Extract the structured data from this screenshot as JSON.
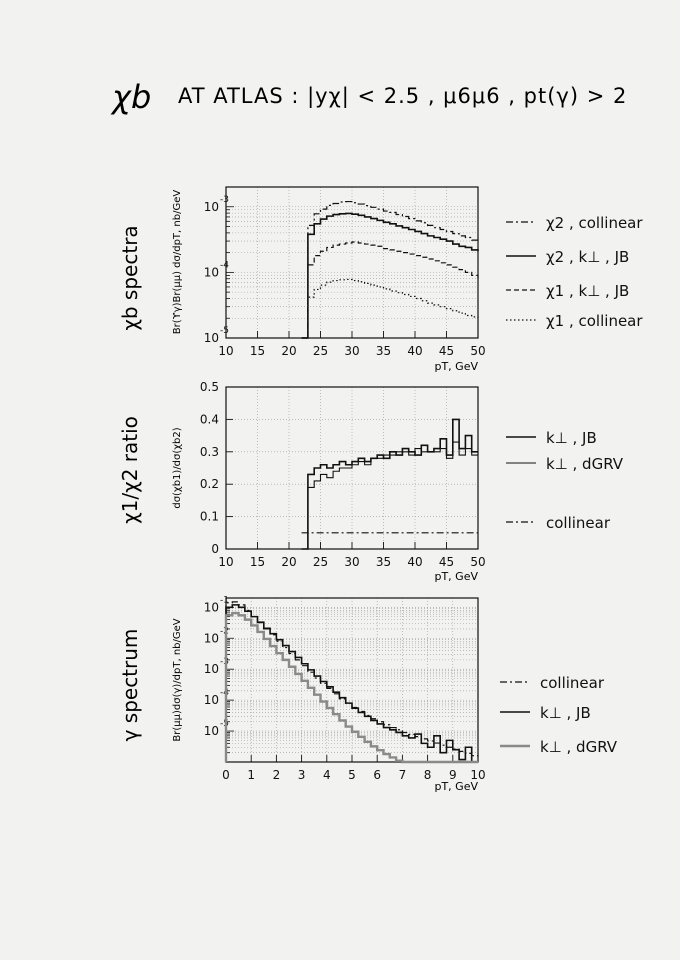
{
  "page_title": {
    "prefix": "χb",
    "rest": "AT ATLAS : |yχ| < 2.5 , μ6μ6 , pt(γ) > 2"
  },
  "colors": {
    "ink": "#111111",
    "grid": "#9a9a9a",
    "paper": "#f2f2f0"
  },
  "chart_data": [
    {
      "type": "line",
      "side_label": "χb spectra",
      "ylabel": "Br(ϒγ)Br(μμ) dσ/dpT, nb/GeV",
      "xlabel": "pT, GeV",
      "xlim": [
        10,
        50
      ],
      "ylim": [
        1e-05,
        0.002
      ],
      "yscale": "log",
      "grid": true,
      "xticks": [
        10,
        15,
        20,
        25,
        30,
        35,
        40,
        45,
        50
      ],
      "yticks": [
        {
          "v": 1e-05,
          "label": "10",
          "exp": "-5"
        },
        {
          "v": 0.0001,
          "label": "10",
          "exp": "-4"
        },
        {
          "v": 0.001,
          "label": "10",
          "exp": "-3"
        }
      ],
      "legend_position": "right",
      "series": [
        {
          "name": "χ2 , collinear",
          "style": "dashdot",
          "x": [
            22,
            23,
            24,
            25,
            26,
            27,
            28,
            29,
            30,
            31,
            32,
            33,
            34,
            35,
            36,
            37,
            38,
            39,
            40,
            41,
            42,
            43,
            44,
            45,
            46,
            47,
            48,
            49,
            50
          ],
          "values": [
            1e-05,
            0.00052,
            0.00078,
            0.00092,
            0.00105,
            0.00112,
            0.00118,
            0.0012,
            0.00115,
            0.0011,
            0.00104,
            0.00098,
            0.00092,
            0.00086,
            0.00082,
            0.00076,
            0.00071,
            0.00066,
            0.00061,
            0.00057,
            0.00052,
            0.00048,
            0.00045,
            0.00042,
            0.00039,
            0.00036,
            0.00034,
            0.00031,
            0.00029
          ]
        },
        {
          "name": "χ2 , k⊥ , JB",
          "style": "solid",
          "x": [
            22,
            23,
            24,
            25,
            26,
            27,
            28,
            29,
            30,
            31,
            32,
            33,
            34,
            35,
            36,
            37,
            38,
            39,
            40,
            41,
            42,
            43,
            44,
            45,
            46,
            47,
            48,
            49,
            50
          ],
          "values": [
            1e-05,
            0.00038,
            0.00055,
            0.00065,
            0.00072,
            0.00076,
            0.00078,
            0.00079,
            0.00077,
            0.00074,
            0.0007,
            0.00066,
            0.00062,
            0.00058,
            0.00055,
            0.00051,
            0.00048,
            0.00045,
            0.00042,
            0.00039,
            0.00036,
            0.00034,
            0.00032,
            0.0003,
            0.00027,
            0.00025,
            0.00024,
            0.00022,
            0.00021
          ]
        },
        {
          "name": "χ1 , k⊥ , JB",
          "style": "dashed",
          "x": [
            22,
            23,
            24,
            25,
            26,
            27,
            28,
            29,
            30,
            31,
            32,
            33,
            34,
            35,
            36,
            37,
            38,
            39,
            40,
            41,
            42,
            43,
            44,
            45,
            46,
            47,
            48,
            49,
            50
          ],
          "values": [
            1e-05,
            0.00013,
            0.00018,
            0.00021,
            0.00024,
            0.00026,
            0.00027,
            0.00028,
            0.00029,
            0.00028,
            0.00027,
            0.00026,
            0.00025,
            0.00023,
            0.00022,
            0.00021,
            0.0002,
            0.00019,
            0.00018,
            0.00017,
            0.00016,
            0.00015,
            0.00014,
            0.00013,
            0.00012,
            0.00011,
            0.0001,
            9e-05,
            8e-05
          ]
        },
        {
          "name": "χ1 , collinear",
          "style": "dotted",
          "x": [
            22,
            23,
            24,
            25,
            26,
            27,
            28,
            29,
            30,
            31,
            32,
            33,
            34,
            35,
            36,
            37,
            38,
            39,
            40,
            41,
            42,
            43,
            44,
            45,
            46,
            47,
            48,
            49,
            50
          ],
          "values": [
            1e-05,
            4.2e-05,
            5.5e-05,
            6.4e-05,
            7.1e-05,
            7.5e-05,
            7.7e-05,
            7.8e-05,
            7.5e-05,
            7.2e-05,
            6.8e-05,
            6.4e-05,
            6e-05,
            5.6e-05,
            5.2e-05,
            4.9e-05,
            4.6e-05,
            4.3e-05,
            4e-05,
            3.7e-05,
            3.4e-05,
            3.2e-05,
            3e-05,
            2.8e-05,
            2.6e-05,
            2.4e-05,
            2.2e-05,
            2.1e-05,
            2e-05
          ]
        }
      ]
    },
    {
      "type": "line",
      "side_label": "χ1/χ2 ratio",
      "ylabel": "dσ(χb1)/dσ(χb2)",
      "xlabel": "pT, GeV",
      "xlim": [
        10,
        50
      ],
      "ylim": [
        0,
        0.5
      ],
      "yscale": "linear",
      "grid": true,
      "xticks": [
        10,
        15,
        20,
        25,
        30,
        35,
        40,
        45,
        50
      ],
      "yticks": [
        {
          "v": 0,
          "label": "0"
        },
        {
          "v": 0.1,
          "label": "0.1"
        },
        {
          "v": 0.2,
          "label": "0.2"
        },
        {
          "v": 0.3,
          "label": "0.3"
        },
        {
          "v": 0.4,
          "label": "0.4"
        },
        {
          "v": 0.5,
          "label": "0.5"
        }
      ],
      "legend_position": "right",
      "series": [
        {
          "name": "k⊥ , JB",
          "style": "solid",
          "x": [
            22,
            23,
            24,
            25,
            26,
            27,
            28,
            29,
            30,
            31,
            32,
            33,
            34,
            35,
            36,
            37,
            38,
            39,
            40,
            41,
            42,
            43,
            44,
            45,
            46,
            47,
            48,
            49,
            50
          ],
          "values": [
            0.0,
            0.23,
            0.25,
            0.26,
            0.25,
            0.26,
            0.27,
            0.26,
            0.27,
            0.28,
            0.27,
            0.28,
            0.29,
            0.28,
            0.3,
            0.29,
            0.31,
            0.3,
            0.29,
            0.32,
            0.3,
            0.31,
            0.34,
            0.29,
            0.4,
            0.31,
            0.35,
            0.3,
            0.3
          ]
        },
        {
          "name": "k⊥ , dGRV",
          "style": "solid-thin",
          "x": [
            22,
            23,
            24,
            25,
            26,
            27,
            28,
            29,
            30,
            31,
            32,
            33,
            34,
            35,
            36,
            37,
            38,
            39,
            40,
            41,
            42,
            43,
            44,
            45,
            46,
            47,
            48,
            49,
            50
          ],
          "values": [
            0.0,
            0.19,
            0.21,
            0.23,
            0.22,
            0.24,
            0.25,
            0.25,
            0.26,
            0.27,
            0.26,
            0.28,
            0.28,
            0.29,
            0.29,
            0.3,
            0.3,
            0.29,
            0.31,
            0.3,
            0.3,
            0.3,
            0.31,
            0.28,
            0.33,
            0.29,
            0.31,
            0.29,
            0.29
          ]
        },
        {
          "name": "collinear",
          "style": "dashdot",
          "x": [
            22,
            50
          ],
          "values": [
            0.05,
            0.05
          ]
        }
      ]
    },
    {
      "type": "line",
      "side_label": "γ spectrum",
      "ylabel": "Br(μμ)dσ(γ)/dpT, nb/GeV",
      "xlabel": "pT, GeV",
      "xlim": [
        0,
        10
      ],
      "ylim": [
        1e-06,
        0.2
      ],
      "yscale": "log",
      "grid": true,
      "xticks": [
        0,
        1,
        2,
        3,
        4,
        5,
        6,
        7,
        8,
        9,
        10
      ],
      "yticks": [
        {
          "v": 1e-05,
          "label": "10",
          "exp": "-5"
        },
        {
          "v": 0.0001,
          "label": "10",
          "exp": "-4"
        },
        {
          "v": 0.001,
          "label": "10",
          "exp": "-3"
        },
        {
          "v": 0.01,
          "label": "10",
          "exp": "-2"
        },
        {
          "v": 0.1,
          "label": "10",
          "exp": "-1"
        }
      ],
      "legend_position": "right",
      "series": [
        {
          "name": "collinear",
          "style": "dashdot",
          "x": [
            0,
            0.25,
            0.5,
            0.75,
            1,
            1.25,
            1.5,
            1.75,
            2,
            2.25,
            2.5,
            2.75,
            3,
            3.25,
            3.5,
            3.75,
            4,
            4.25,
            4.5,
            4.75,
            5,
            5.25,
            5.5,
            5.75,
            6,
            6.25,
            6.5,
            6.75,
            7,
            7.25,
            7.5,
            7.75,
            8,
            8.25,
            8.5,
            8.75,
            9,
            9.25,
            9.5,
            9.75,
            10
          ],
          "values": [
            0.14,
            0.15,
            0.12,
            0.08,
            0.05,
            0.032,
            0.02,
            0.013,
            0.008,
            0.005,
            0.0032,
            0.002,
            0.0013,
            0.0008,
            0.00052,
            0.00035,
            0.00024,
            0.00016,
            0.00011,
            8e-05,
            5.8e-05,
            4.3e-05,
            3.2e-05,
            2.5e-05,
            2e-05,
            1.6e-05,
            1.3e-05,
            1.1e-05,
            9e-06,
            7.8e-06,
            6.6e-06,
            5.6e-06,
            4.8e-06,
            4.1e-06,
            3.5e-06,
            3e-06,
            2.6e-06,
            2.2e-06,
            1.9e-06,
            1.6e-06,
            1.4e-06
          ]
        },
        {
          "name": "k⊥ , JB",
          "style": "solid",
          "x": [
            0,
            0.25,
            0.5,
            0.75,
            1,
            1.25,
            1.5,
            1.75,
            2,
            2.25,
            2.5,
            2.75,
            3,
            3.25,
            3.5,
            3.75,
            4,
            4.25,
            4.5,
            4.75,
            5,
            5.25,
            5.5,
            5.75,
            6,
            6.25,
            6.5,
            6.75,
            7,
            7.25,
            7.5,
            7.75,
            8,
            8.25,
            8.5,
            8.75,
            9,
            9.25,
            9.5,
            9.75,
            10
          ],
          "values": [
            0.1,
            0.12,
            0.1,
            0.075,
            0.05,
            0.033,
            0.021,
            0.014,
            0.009,
            0.0058,
            0.0037,
            0.0024,
            0.0015,
            0.00095,
            0.0006,
            0.0004,
            0.00027,
            0.00018,
            0.00012,
            8e-05,
            5.5e-05,
            4e-05,
            3e-05,
            2.2e-05,
            1.7e-05,
            1.3e-05,
            1.1e-05,
            9e-06,
            7e-06,
            6e-06,
            8e-06,
            4e-06,
            3e-06,
            7e-06,
            2e-06,
            5e-06,
            2.5e-06,
            1.2e-06,
            3e-06,
            1e-06,
            1e-06
          ]
        },
        {
          "name": "k⊥ , dGRV",
          "style": "solid-gray",
          "x": [
            0,
            0.25,
            0.5,
            0.75,
            1,
            1.25,
            1.5,
            1.75,
            2,
            2.25,
            2.5,
            2.75,
            3,
            3.25,
            3.5,
            3.75,
            4,
            4.25,
            4.5,
            4.75,
            5,
            5.25,
            5.5,
            5.75,
            6,
            6.25,
            6.5,
            6.75,
            7,
            7.25,
            7.5,
            7.75,
            8,
            8.25,
            8.5,
            8.75,
            9,
            9.25,
            9.5,
            9.75,
            10
          ],
          "values": [
            0.055,
            0.065,
            0.055,
            0.04,
            0.026,
            0.016,
            0.0095,
            0.0056,
            0.0033,
            0.002,
            0.0012,
            0.0007,
            0.00042,
            0.00025,
            0.00015,
            9e-05,
            5.6e-05,
            3.5e-05,
            2.2e-05,
            1.4e-05,
            9.5e-06,
            6.5e-06,
            4.5e-06,
            3.2e-06,
            2.4e-06,
            1.8e-06,
            1.4e-06,
            1.1e-06,
            1e-06,
            1e-06,
            1e-06,
            1e-06,
            1e-06,
            1e-06,
            1e-06,
            1e-06,
            1e-06,
            1e-06,
            1e-06,
            1e-06,
            1e-06
          ]
        }
      ]
    }
  ]
}
